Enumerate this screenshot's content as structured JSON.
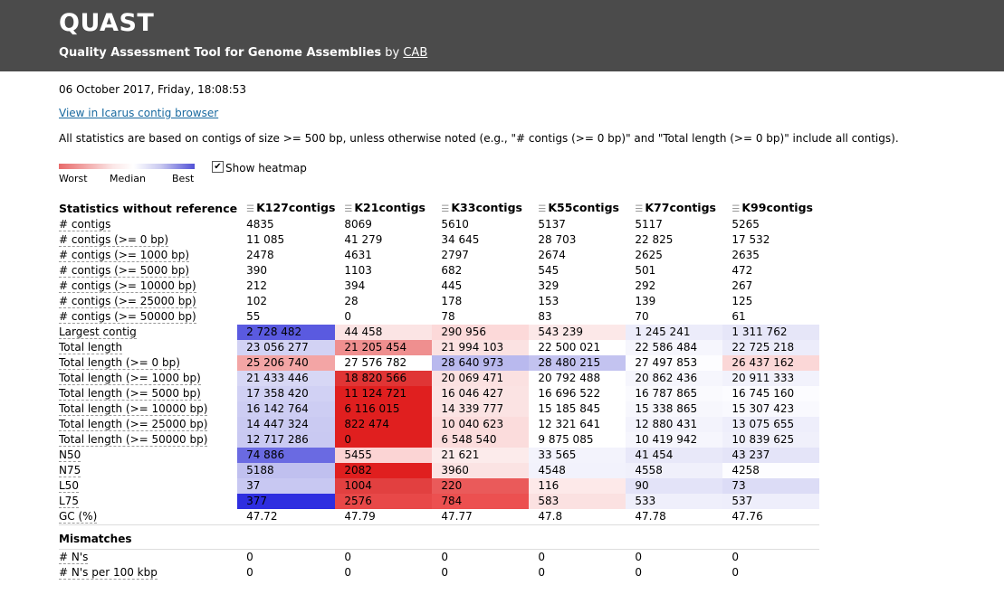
{
  "header": {
    "brand": "QUAST",
    "tagline_bold": "Quality Assessment Tool for Genome Assemblies",
    "tagline_by": " by ",
    "tagline_link": "CAB"
  },
  "date": "06 October 2017, Friday, 18:08:53",
  "icarus_link": "View in Icarus contig browser",
  "note": "All statistics are based on contigs of size >= 500 bp, unless otherwise noted (e.g., \"# contigs (>= 0 bp)\" and \"Total length (>= 0 bp)\" include all contigs).",
  "legend": {
    "worst": "Worst",
    "median": "Median",
    "best": "Best",
    "show_heatmap": "Show heatmap",
    "checked": true
  },
  "table": {
    "header_label": "Statistics without reference",
    "columns": [
      "K127contigs",
      "K21contigs",
      "K33contigs",
      "K55contigs",
      "K77contigs",
      "K99contigs"
    ],
    "rows": [
      {
        "label": "# contigs",
        "values": [
          "4835",
          "8069",
          "5610",
          "5137",
          "5117",
          "5265"
        ]
      },
      {
        "label": "# contigs (>= 0 bp)",
        "values": [
          "11 085",
          "41 279",
          "34 645",
          "28 703",
          "22 825",
          "17 532"
        ]
      },
      {
        "label": "# contigs (>= 1000 bp)",
        "values": [
          "2478",
          "4631",
          "2797",
          "2674",
          "2625",
          "2635"
        ]
      },
      {
        "label": "# contigs (>= 5000 bp)",
        "values": [
          "390",
          "1103",
          "682",
          "545",
          "501",
          "472"
        ]
      },
      {
        "label": "# contigs (>= 10000 bp)",
        "values": [
          "212",
          "394",
          "445",
          "329",
          "292",
          "267"
        ]
      },
      {
        "label": "# contigs (>= 25000 bp)",
        "values": [
          "102",
          "28",
          "178",
          "153",
          "139",
          "125"
        ]
      },
      {
        "label": "# contigs (>= 50000 bp)",
        "values": [
          "55",
          "0",
          "78",
          "83",
          "70",
          "61"
        ]
      },
      {
        "label": "Largest contig",
        "values": [
          "2 728 482",
          "44 458",
          "290 956",
          "543 239",
          "1 245 241",
          "1 311 762"
        ],
        "colors": [
          "#5a5ae0",
          "#fbe4e4",
          "#fcd9d9",
          "#fce8e8",
          "#ececfa",
          "#e6e6f8"
        ]
      },
      {
        "label": "Total length",
        "values": [
          "23 056 277",
          "21 205 454",
          "21 994 103",
          "22 500 021",
          "22 586 484",
          "22 725 218"
        ],
        "colors": [
          "#d2d2f4",
          "#ef8f8f",
          "#fbe2e2",
          "#ffffff",
          "#f6f6fd",
          "#ececfa"
        ]
      },
      {
        "label": "Total length (>= 0 bp)",
        "values": [
          "25 206 740",
          "27 576 782",
          "28 640 973",
          "28 480 215",
          "27 497 853",
          "26 437 162"
        ],
        "colors": [
          "#f3a5a5",
          "#ffffff",
          "#b9b9ee",
          "#c3c3f0",
          "#fdfdff",
          "#fbd7d7"
        ]
      },
      {
        "label": "Total length (>= 1000 bp)",
        "values": [
          "21 433 446",
          "18 820 566",
          "20 069 471",
          "20 792 488",
          "20 862 436",
          "20 911 333"
        ],
        "colors": [
          "#d7d7f5",
          "#e03535",
          "#fbe1e1",
          "#ffffff",
          "#f6f6fd",
          "#f2f2fc"
        ]
      },
      {
        "label": "Total length (>= 5000 bp)",
        "values": [
          "17 358 420",
          "11 124 721",
          "16 046 427",
          "16 696 522",
          "16 787 865",
          "16 745 160"
        ],
        "colors": [
          "#d1d1f4",
          "#e01f1f",
          "#fbe3e3",
          "#ffffff",
          "#fafafe",
          "#fcfcff"
        ]
      },
      {
        "label": "Total length (>= 10000 bp)",
        "values": [
          "16 142 764",
          "6 116 015",
          "14 339 777",
          "15 185 845",
          "15 338 865",
          "15 307 423"
        ],
        "colors": [
          "#cdcdf3",
          "#e01f1f",
          "#fbe3e3",
          "#ffffff",
          "#f7f7fd",
          "#f9f9fe"
        ]
      },
      {
        "label": "Total length (>= 25000 bp)",
        "values": [
          "14 447 324",
          "822 474",
          "10 040 623",
          "12 321 641",
          "12 880 431",
          "13 075 655"
        ],
        "colors": [
          "#cacaf2",
          "#e01f1f",
          "#fbdcdc",
          "#ffffff",
          "#f3f3fc",
          "#eeeefb"
        ]
      },
      {
        "label": "Total length (>= 50000 bp)",
        "values": [
          "12 717 286",
          "0",
          "6 548 540",
          "9 875 085",
          "10 419 942",
          "10 839 625"
        ],
        "colors": [
          "#c9c9f2",
          "#e01f1f",
          "#fbdcdc",
          "#ffffff",
          "#f6f6fd",
          "#f0f0fb"
        ]
      },
      {
        "label": "N50",
        "values": [
          "74 886",
          "5455",
          "21 621",
          "33 565",
          "41 454",
          "43 237"
        ],
        "colors": [
          "#6a6ae2",
          "#fbd4d4",
          "#fcebeb",
          "#f3f3fc",
          "#e8e8f9",
          "#e4e4f8"
        ]
      },
      {
        "label": "N75",
        "values": [
          "5188",
          "2082",
          "3960",
          "4548",
          "4558",
          "4258"
        ],
        "colors": [
          "#c0c0ef",
          "#e01f1f",
          "#fbe3e3",
          "#f2f2fc",
          "#f0f0fb",
          "#fdfdff"
        ]
      },
      {
        "label": "L50",
        "values": [
          "37",
          "1004",
          "220",
          "116",
          "90",
          "73"
        ],
        "colors": [
          "#c8c8f2",
          "#e24040",
          "#ea5a5a",
          "#fde9e9",
          "#e3e3f8",
          "#dcdcf6"
        ]
      },
      {
        "label": "L75",
        "values": [
          "377",
          "2576",
          "784",
          "583",
          "533",
          "537"
        ],
        "colors": [
          "#2e2ee0",
          "#e84848",
          "#ec5050",
          "#fbe1e1",
          "#efeffb",
          "#eeeefb"
        ]
      },
      {
        "label": "GC (%)",
        "values": [
          "47.72",
          "47.79",
          "47.77",
          "47.8",
          "47.78",
          "47.76"
        ]
      }
    ],
    "mismatch_section": "Mismatches",
    "mismatch_rows": [
      {
        "label": "# N's",
        "values": [
          "0",
          "0",
          "0",
          "0",
          "0",
          "0"
        ]
      },
      {
        "label": "# N's per 100 kbp",
        "values": [
          "0",
          "0",
          "0",
          "0",
          "0",
          "0"
        ]
      }
    ]
  }
}
